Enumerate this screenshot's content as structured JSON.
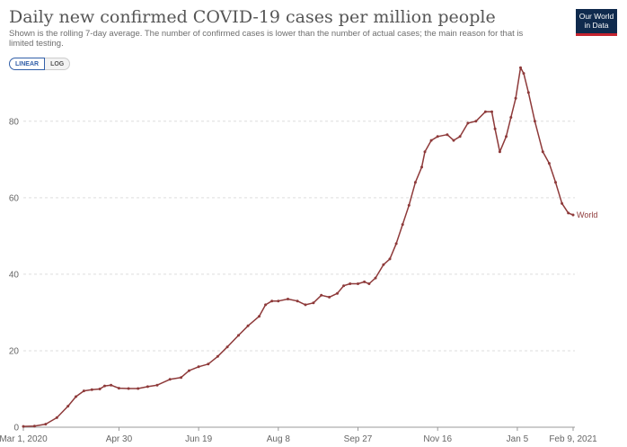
{
  "header": {
    "title": "Daily new confirmed COVID-19 cases per million people",
    "subtitle": "Shown is the rolling 7-day average. The number of confirmed cases is lower than the number of actual cases; the main reason for that is limited testing."
  },
  "logo": {
    "line1": "Our World",
    "line2": "in Data"
  },
  "scale_toggle": {
    "linear_label": "LINEAR",
    "log_label": "LOG",
    "selected": "LINEAR"
  },
  "colors": {
    "series": "#8e3a3a",
    "grid": "#dddddd",
    "axis": "#999999"
  },
  "chart_data": {
    "type": "line",
    "title": "Daily new confirmed COVID-19 cases per million people",
    "xlabel": "",
    "ylabel": "",
    "x_range": [
      "2020-03-01",
      "2021-02-09"
    ],
    "ylim": [
      0,
      95
    ],
    "y_ticks": [
      0,
      20,
      40,
      60,
      80
    ],
    "y_tick_labels": [
      "0",
      "20",
      "40",
      "60",
      "80"
    ],
    "x_ticks": [
      "2020-03-01",
      "2020-04-30",
      "2020-06-19",
      "2020-08-08",
      "2020-09-27",
      "2020-11-16",
      "2021-01-05",
      "2021-02-09"
    ],
    "x_tick_labels": [
      "Mar 1, 2020",
      "Apr 30",
      "Jun 19",
      "Aug 8",
      "Sep 27",
      "Nov 16",
      "Jan 5",
      "Feb 9, 2021"
    ],
    "grid": "horizontal dashed",
    "series": [
      {
        "name": "World",
        "points": [
          [
            "2020-03-01",
            0.2
          ],
          [
            "2020-03-08",
            0.3
          ],
          [
            "2020-03-15",
            0.8
          ],
          [
            "2020-03-22",
            2.5
          ],
          [
            "2020-03-29",
            5.5
          ],
          [
            "2020-04-03",
            8.0
          ],
          [
            "2020-04-08",
            9.5
          ],
          [
            "2020-04-13",
            9.8
          ],
          [
            "2020-04-18",
            10.0
          ],
          [
            "2020-04-21",
            10.8
          ],
          [
            "2020-04-25",
            11.0
          ],
          [
            "2020-04-30",
            10.2
          ],
          [
            "2020-05-06",
            10.1
          ],
          [
            "2020-05-12",
            10.1
          ],
          [
            "2020-05-18",
            10.6
          ],
          [
            "2020-05-24",
            11.0
          ],
          [
            "2020-06-01",
            12.5
          ],
          [
            "2020-06-08",
            13.0
          ],
          [
            "2020-06-13",
            14.8
          ],
          [
            "2020-06-19",
            15.8
          ],
          [
            "2020-06-25",
            16.5
          ],
          [
            "2020-07-01",
            18.5
          ],
          [
            "2020-07-07",
            21.0
          ],
          [
            "2020-07-14",
            24.0
          ],
          [
            "2020-07-20",
            26.5
          ],
          [
            "2020-07-27",
            29.0
          ],
          [
            "2020-07-31",
            32.0
          ],
          [
            "2020-08-04",
            33.0
          ],
          [
            "2020-08-08",
            33.0
          ],
          [
            "2020-08-14",
            33.5
          ],
          [
            "2020-08-20",
            33.0
          ],
          [
            "2020-08-25",
            32.0
          ],
          [
            "2020-08-30",
            32.5
          ],
          [
            "2020-09-04",
            34.5
          ],
          [
            "2020-09-09",
            34.0
          ],
          [
            "2020-09-14",
            35.0
          ],
          [
            "2020-09-18",
            37.0
          ],
          [
            "2020-09-22",
            37.5
          ],
          [
            "2020-09-27",
            37.5
          ],
          [
            "2020-10-01",
            38.0
          ],
          [
            "2020-10-04",
            37.5
          ],
          [
            "2020-10-08",
            39.0
          ],
          [
            "2020-10-13",
            42.5
          ],
          [
            "2020-10-17",
            44.0
          ],
          [
            "2020-10-21",
            48.0
          ],
          [
            "2020-10-25",
            53.0
          ],
          [
            "2020-10-29",
            58.0
          ],
          [
            "2020-11-02",
            64.0
          ],
          [
            "2020-11-06",
            68.0
          ],
          [
            "2020-11-08",
            72.0
          ],
          [
            "2020-11-12",
            75.0
          ],
          [
            "2020-11-16",
            76.0
          ],
          [
            "2020-11-22",
            76.5
          ],
          [
            "2020-11-26",
            75.0
          ],
          [
            "2020-11-30",
            76.0
          ],
          [
            "2020-12-05",
            79.5
          ],
          [
            "2020-12-10",
            80.0
          ],
          [
            "2020-12-16",
            82.5
          ],
          [
            "2020-12-20",
            82.5
          ],
          [
            "2020-12-22",
            78.0
          ],
          [
            "2020-12-25",
            72.0
          ],
          [
            "2020-12-29",
            76.0
          ],
          [
            "2021-01-01",
            81.0
          ],
          [
            "2021-01-04",
            86.0
          ],
          [
            "2021-01-07",
            94.0
          ],
          [
            "2021-01-09",
            92.5
          ],
          [
            "2021-01-12",
            87.5
          ],
          [
            "2021-01-16",
            80.0
          ],
          [
            "2021-01-21",
            72.0
          ],
          [
            "2021-01-25",
            69.0
          ],
          [
            "2021-01-29",
            64.0
          ],
          [
            "2021-02-02",
            58.5
          ],
          [
            "2021-02-06",
            56.0
          ],
          [
            "2021-02-09",
            55.5
          ]
        ]
      }
    ]
  }
}
